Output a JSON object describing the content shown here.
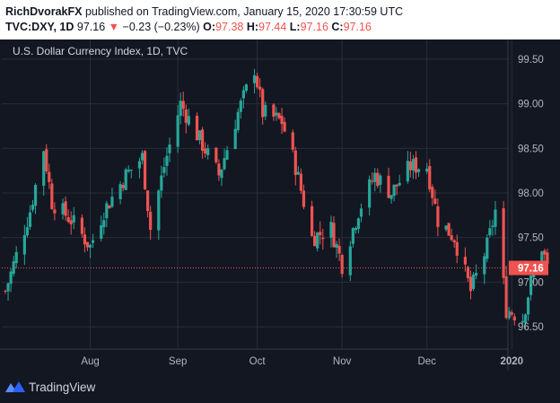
{
  "header": {
    "author": "RichDvorakFX",
    "published": "published on TradingView.com, January 15, 2020 17:30:59 UTC",
    "symbol": "TVC:DXY, 1D",
    "last": "97.16",
    "change": "−0.23 (−0.23%)",
    "o_label": "O:",
    "o_value": "97.38",
    "h_label": "H:",
    "h_value": "97.44",
    "l_label": "L:",
    "l_value": "97.16",
    "c_label": "C:",
    "c_value": "97.16"
  },
  "footer": {
    "brand": "TradingView"
  },
  "colors": {
    "background": "#131722",
    "grid": "#2a2e39",
    "up": "#26a69a",
    "down": "#ef5350",
    "axis_text": "#b2b5be",
    "price_line": "#ef5350"
  },
  "chart_data": {
    "type": "candlestick",
    "title": "U.S. Dollar Currency Index, 1D, TVC",
    "x_ticks": [
      "Aug",
      "Sep",
      "Oct",
      "Nov",
      "Dec",
      "2020"
    ],
    "y_ticks": [
      "99.50",
      "99.00",
      "98.50",
      "98.00",
      "97.50",
      "97.00",
      "96.50"
    ],
    "ylim": [
      96.25,
      99.72
    ],
    "grid": true,
    "last_price": 97.16,
    "last_price_label": "97.16",
    "approx_close_path": [
      {
        "date": "2019-07-01",
        "close": 96.9
      },
      {
        "date": "2019-07-05",
        "close": 97.3
      },
      {
        "date": "2019-07-10",
        "close": 97.8
      },
      {
        "date": "2019-07-15",
        "close": 98.5
      },
      {
        "date": "2019-07-18",
        "close": 97.9
      },
      {
        "date": "2019-07-25",
        "close": 97.7
      },
      {
        "date": "2019-08-01",
        "close": 97.4
      },
      {
        "date": "2019-08-06",
        "close": 97.8
      },
      {
        "date": "2019-08-14",
        "close": 98.2
      },
      {
        "date": "2019-08-20",
        "close": 98.4
      },
      {
        "date": "2019-08-23",
        "close": 97.6
      },
      {
        "date": "2019-08-28",
        "close": 98.3
      },
      {
        "date": "2019-09-03",
        "close": 99.0
      },
      {
        "date": "2019-09-10",
        "close": 98.6
      },
      {
        "date": "2019-09-17",
        "close": 98.2
      },
      {
        "date": "2019-09-24",
        "close": 98.9
      },
      {
        "date": "2019-09-30",
        "close": 99.4
      },
      {
        "date": "2019-10-03",
        "close": 98.9
      },
      {
        "date": "2019-10-10",
        "close": 98.8
      },
      {
        "date": "2019-10-15",
        "close": 98.3
      },
      {
        "date": "2019-10-21",
        "close": 97.5
      },
      {
        "date": "2019-10-28",
        "close": 97.6
      },
      {
        "date": "2019-11-01",
        "close": 97.2
      },
      {
        "date": "2019-11-07",
        "close": 97.8
      },
      {
        "date": "2019-11-13",
        "close": 98.2
      },
      {
        "date": "2019-11-19",
        "close": 98.0
      },
      {
        "date": "2019-11-26",
        "close": 98.3
      },
      {
        "date": "2019-12-02",
        "close": 98.3
      },
      {
        "date": "2019-12-06",
        "close": 97.7
      },
      {
        "date": "2019-12-12",
        "close": 97.5
      },
      {
        "date": "2019-12-18",
        "close": 96.9
      },
      {
        "date": "2019-12-24",
        "close": 97.4
      },
      {
        "date": "2019-12-27",
        "close": 97.8
      },
      {
        "date": "2019-12-31",
        "close": 96.7
      },
      {
        "date": "2020-01-06",
        "close": 96.6
      },
      {
        "date": "2020-01-09",
        "close": 97.0
      },
      {
        "date": "2020-01-13",
        "close": 97.4
      },
      {
        "date": "2020-01-15",
        "close": 97.16
      }
    ]
  }
}
